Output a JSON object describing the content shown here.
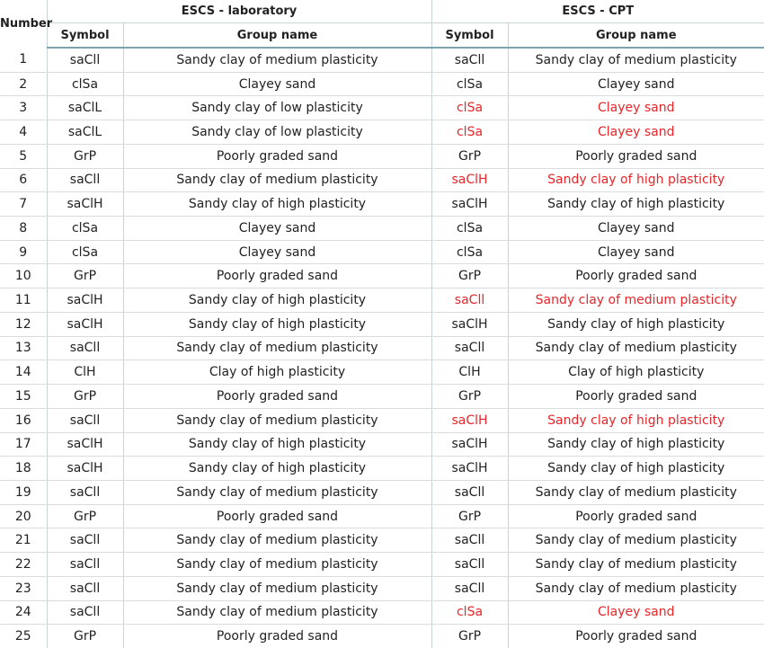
{
  "table": {
    "header": {
      "number": "Number",
      "group_lab": "ESCS - laboratory",
      "group_cpt": "ESCS - CPT",
      "symbol": "Symbol",
      "group_name": "Group name"
    },
    "highlight_color": "#e8262a",
    "rows": [
      {
        "num": "1",
        "lab_symbol": "saCll",
        "lab_name": "Sandy clay of medium plasticity",
        "cpt_symbol": "saCll",
        "cpt_name": "Sandy clay of medium plasticity",
        "mismatch": false
      },
      {
        "num": "2",
        "lab_symbol": "clSa",
        "lab_name": "Clayey sand",
        "cpt_symbol": "clSa",
        "cpt_name": "Clayey sand",
        "mismatch": false
      },
      {
        "num": "3",
        "lab_symbol": "saClL",
        "lab_name": "Sandy clay of low plasticity",
        "cpt_symbol": "clSa",
        "cpt_name": "Clayey sand",
        "mismatch": true
      },
      {
        "num": "4",
        "lab_symbol": "saClL",
        "lab_name": "Sandy clay of low plasticity",
        "cpt_symbol": "clSa",
        "cpt_name": "Clayey sand",
        "mismatch": true
      },
      {
        "num": "5",
        "lab_symbol": "GrP",
        "lab_name": "Poorly graded sand",
        "cpt_symbol": "GrP",
        "cpt_name": "Poorly graded sand",
        "mismatch": false
      },
      {
        "num": "6",
        "lab_symbol": "saCll",
        "lab_name": "Sandy clay of medium plasticity",
        "cpt_symbol": "saClH",
        "cpt_name": "Sandy clay of high plasticity",
        "mismatch": true
      },
      {
        "num": "7",
        "lab_symbol": "saClH",
        "lab_name": "Sandy clay of high plasticity",
        "cpt_symbol": "saClH",
        "cpt_name": "Sandy clay of high plasticity",
        "mismatch": false
      },
      {
        "num": "8",
        "lab_symbol": "clSa",
        "lab_name": "Clayey sand",
        "cpt_symbol": "clSa",
        "cpt_name": "Clayey sand",
        "mismatch": false
      },
      {
        "num": "9",
        "lab_symbol": "clSa",
        "lab_name": "Clayey sand",
        "cpt_symbol": "clSa",
        "cpt_name": "Clayey sand",
        "mismatch": false
      },
      {
        "num": "10",
        "lab_symbol": "GrP",
        "lab_name": "Poorly graded sand",
        "cpt_symbol": "GrP",
        "cpt_name": "Poorly graded sand",
        "mismatch": false
      },
      {
        "num": "11",
        "lab_symbol": "saClH",
        "lab_name": "Sandy clay of high plasticity",
        "cpt_symbol": "saCll",
        "cpt_name": "Sandy clay of medium plasticity",
        "mismatch": true
      },
      {
        "num": "12",
        "lab_symbol": "saClH",
        "lab_name": "Sandy clay of high plasticity",
        "cpt_symbol": "saClH",
        "cpt_name": "Sandy clay of high plasticity",
        "mismatch": false
      },
      {
        "num": "13",
        "lab_symbol": "saCll",
        "lab_name": "Sandy clay of medium plasticity",
        "cpt_symbol": "saCll",
        "cpt_name": "Sandy clay of medium plasticity",
        "mismatch": false
      },
      {
        "num": "14",
        "lab_symbol": "ClH",
        "lab_name": "Clay of high plasticity",
        "cpt_symbol": "ClH",
        "cpt_name": "Clay of high plasticity",
        "mismatch": false
      },
      {
        "num": "15",
        "lab_symbol": "GrP",
        "lab_name": "Poorly graded sand",
        "cpt_symbol": "GrP",
        "cpt_name": "Poorly graded sand",
        "mismatch": false
      },
      {
        "num": "16",
        "lab_symbol": "saCll",
        "lab_name": "Sandy clay of medium plasticity",
        "cpt_symbol": "saClH",
        "cpt_name": "Sandy clay of high plasticity",
        "mismatch": true
      },
      {
        "num": "17",
        "lab_symbol": "saClH",
        "lab_name": "Sandy clay of high plasticity",
        "cpt_symbol": "saClH",
        "cpt_name": "Sandy clay of high plasticity",
        "mismatch": false
      },
      {
        "num": "18",
        "lab_symbol": "saClH",
        "lab_name": "Sandy clay of high plasticity",
        "cpt_symbol": "saClH",
        "cpt_name": "Sandy clay of high plasticity",
        "mismatch": false
      },
      {
        "num": "19",
        "lab_symbol": "saCll",
        "lab_name": "Sandy clay of medium plasticity",
        "cpt_symbol": "saCll",
        "cpt_name": "Sandy clay of medium plasticity",
        "mismatch": false
      },
      {
        "num": "20",
        "lab_symbol": "GrP",
        "lab_name": "Poorly graded sand",
        "cpt_symbol": "GrP",
        "cpt_name": "Poorly graded sand",
        "mismatch": false
      },
      {
        "num": "21",
        "lab_symbol": "saCll",
        "lab_name": "Sandy clay of medium plasticity",
        "cpt_symbol": "saCll",
        "cpt_name": "Sandy clay of medium plasticity",
        "mismatch": false
      },
      {
        "num": "22",
        "lab_symbol": "saCll",
        "lab_name": "Sandy clay of medium plasticity",
        "cpt_symbol": "saCll",
        "cpt_name": "Sandy clay of medium plasticity",
        "mismatch": false
      },
      {
        "num": "23",
        "lab_symbol": "saCll",
        "lab_name": "Sandy clay of medium plasticity",
        "cpt_symbol": "saCll",
        "cpt_name": "Sandy clay of medium plasticity",
        "mismatch": false
      },
      {
        "num": "24",
        "lab_symbol": "saCll",
        "lab_name": "Sandy clay of medium plasticity",
        "cpt_symbol": "clSa",
        "cpt_name": "Clayey sand",
        "mismatch": true
      },
      {
        "num": "25",
        "lab_symbol": "GrP",
        "lab_name": "Poorly graded sand",
        "cpt_symbol": "GrP",
        "cpt_name": "Poorly graded sand",
        "mismatch": false
      }
    ]
  }
}
